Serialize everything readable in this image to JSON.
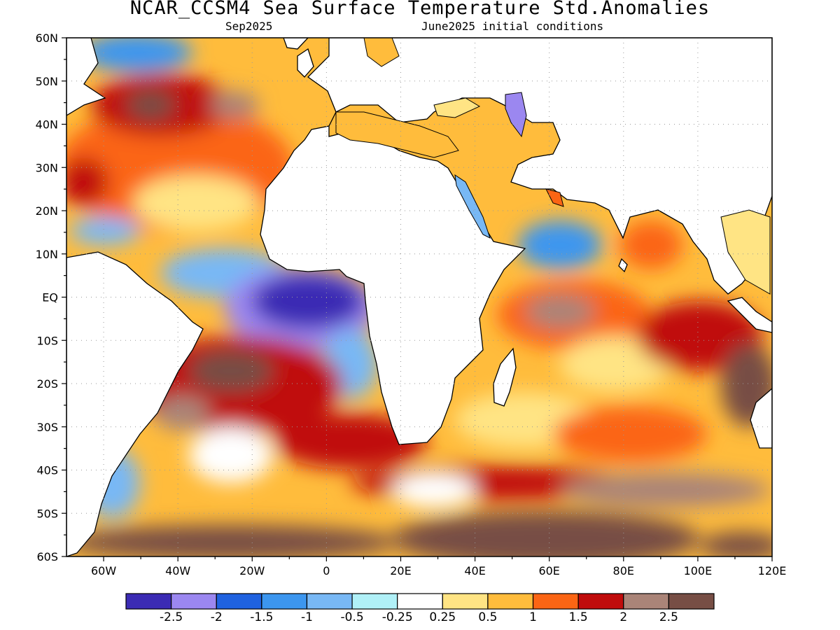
{
  "title": "NCAR_CCSM4 Sea Surface Temperature Std.Anomalies",
  "subtitle_left": "Sep2025",
  "subtitle_right": "June2025 initial conditions",
  "lat_labels": [
    "60N",
    "50N",
    "40N",
    "30N",
    "20N",
    "10N",
    "EQ",
    "10S",
    "20S",
    "30S",
    "40S",
    "50S",
    "60S"
  ],
  "lon_labels": [
    "60W",
    "40W",
    "20W",
    "0",
    "20E",
    "40E",
    "60E",
    "80E",
    "100E",
    "120E"
  ],
  "colorbar": {
    "colors": [
      "#3b2bb4",
      "#9b87f0",
      "#1f62e0",
      "#3c96ef",
      "#78b8f5",
      "#b0f0f7",
      "#ffffff",
      "#ffe484",
      "#ffbc3c",
      "#fb6514",
      "#c00c0c",
      "#aa8478",
      "#774e45"
    ],
    "labels": [
      "-2.5",
      "-2",
      "-1.5",
      "-1",
      "-0.5",
      "-0.25",
      "0.25",
      "0.5",
      "1",
      "1.5",
      "2",
      "2.5"
    ]
  },
  "colors": {
    "land": "#ffffff",
    "coast": "#000000",
    "grid": "#9a9a9a"
  }
}
